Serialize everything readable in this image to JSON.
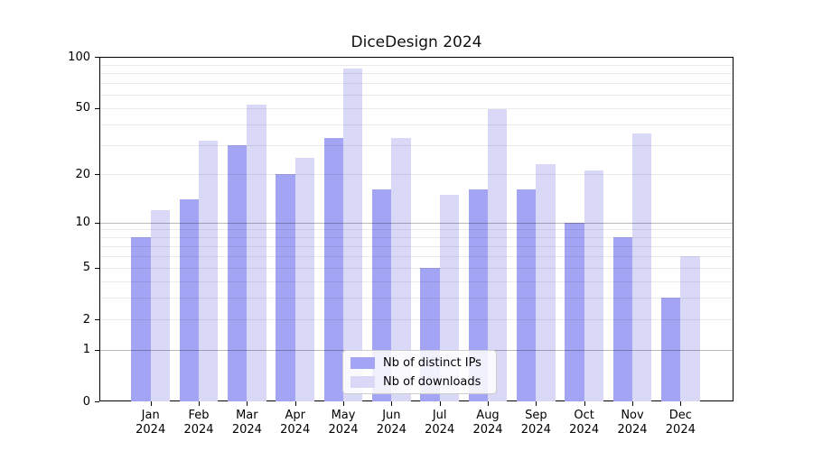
{
  "chart_data": {
    "type": "bar",
    "title": "DiceDesign 2024",
    "categories": [
      "Jan",
      "Feb",
      "Mar",
      "Apr",
      "May",
      "Jun",
      "Jul",
      "Aug",
      "Sep",
      "Oct",
      "Nov",
      "Dec"
    ],
    "year_label": "2024",
    "series": [
      {
        "name": "Nb of distinct IPs",
        "color": "#a4a4f4",
        "values": [
          8,
          14,
          30,
          20,
          33,
          16,
          5,
          16,
          16,
          10,
          8,
          3
        ]
      },
      {
        "name": "Nb of downloads",
        "color": "#d9d9f7",
        "values": [
          12,
          32,
          52,
          25,
          85,
          33,
          15,
          49,
          23,
          21,
          35,
          6
        ]
      }
    ],
    "y_axis": {
      "scale": "log1p",
      "ylim": [
        0,
        100
      ],
      "ticks": [
        0,
        1,
        2,
        5,
        10,
        20,
        50,
        100
      ],
      "major_gridlines": [
        1,
        10
      ],
      "minor_gridlines": [
        2,
        3,
        4,
        5,
        6,
        7,
        8,
        9,
        20,
        30,
        40,
        50,
        60,
        70,
        80,
        90
      ]
    },
    "legend": {
      "position": "lower-center"
    },
    "grid_on": true
  }
}
